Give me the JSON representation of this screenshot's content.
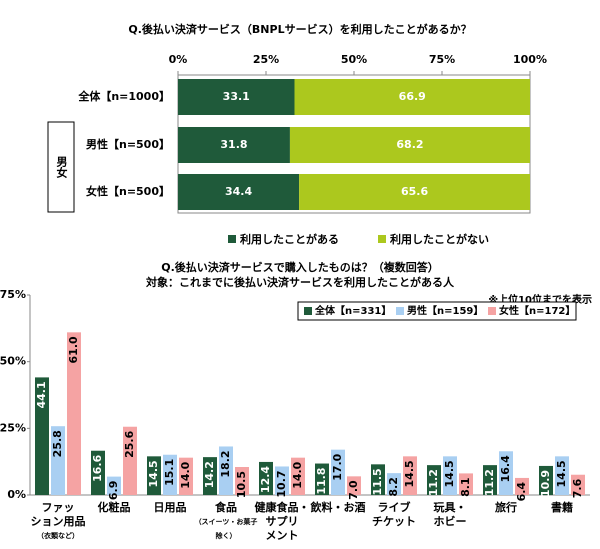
{
  "chart_data": [
    {
      "type": "stacked_barh",
      "title": "Q.後払い決済サービス（BNPLサービス）を利用したことがあるか？",
      "categories": [
        "全体【n=1000】",
        "男性【n=500】",
        "女性【n=500】"
      ],
      "row_group": "男女",
      "xlim": [
        0,
        100
      ],
      "xticks": [
        {
          "value": 0,
          "label": "0%"
        },
        {
          "value": 25,
          "label": "25%"
        },
        {
          "value": 50,
          "label": "50%"
        },
        {
          "value": 75,
          "label": "75%"
        },
        {
          "value": 100,
          "label": "100%"
        }
      ],
      "series": [
        {
          "name": "利用したことがある",
          "color": "#1f5a3a",
          "values": [
            33.1,
            31.8,
            34.4
          ]
        },
        {
          "name": "利用したことがない",
          "color": "#acc81e",
          "values": [
            66.9,
            68.2,
            65.6
          ]
        }
      ]
    },
    {
      "type": "bar",
      "title": "Q.後払い決済サービスで購入したものは？（複数回答）",
      "subtitle": "対象：これまでに後払い決済サービスを利用したことがある人",
      "annotation": "※上位10位までを表示",
      "categories": [
        [
          "ファッ",
          "ション用品",
          "（衣類など）"
        ],
        [
          "化粧品"
        ],
        [
          "日用品"
        ],
        [
          "食品",
          "（スイーツ・お菓子",
          "除く）"
        ],
        [
          "健康食品・",
          "サプリ",
          "メント"
        ],
        [
          "飲料・お酒"
        ],
        [
          "ライブ",
          "チケット"
        ],
        [
          "玩具・",
          "ホビー"
        ],
        [
          "旅行"
        ],
        [
          "書籍"
        ]
      ],
      "ylim": [
        0,
        75
      ],
      "yticks": [
        {
          "value": 0,
          "label": "0%"
        },
        {
          "value": 25,
          "label": "25%"
        },
        {
          "value": 50,
          "label": "50%"
        },
        {
          "value": 75,
          "label": "75%"
        }
      ],
      "series": [
        {
          "name": "全体【n=331】",
          "color": "#1f5a3a",
          "values": [
            44.1,
            16.6,
            14.5,
            14.2,
            12.4,
            11.8,
            11.5,
            11.2,
            11.2,
            10.9
          ],
          "value_labels": [
            "44.1",
            "16.6",
            "14.5",
            "14.2",
            "12.4",
            "11.8",
            "11.5",
            "11.2",
            "11.2",
            "10.9"
          ]
        },
        {
          "name": "男性【n=159】",
          "color": "#a9cff2",
          "values": [
            25.8,
            6.9,
            15.1,
            18.2,
            10.7,
            17.0,
            8.2,
            14.5,
            16.4,
            14.5
          ],
          "value_labels": [
            "25.8",
            "6.9",
            "15.1",
            "18.2",
            "10.7",
            "17.0",
            "8.2",
            "14.5",
            "16.4",
            "14.5"
          ]
        },
        {
          "name": "女性【n=172】",
          "color": "#f5a3a3",
          "values": [
            61.0,
            25.6,
            14.0,
            10.5,
            14.0,
            7.0,
            14.5,
            8.1,
            6.4,
            7.6
          ],
          "value_labels": [
            "61.0",
            "25.6",
            "14.0",
            "10.5",
            "14.0",
            "7.0",
            "14.5",
            "8.1",
            "6.4",
            "7.6"
          ]
        }
      ]
    }
  ]
}
